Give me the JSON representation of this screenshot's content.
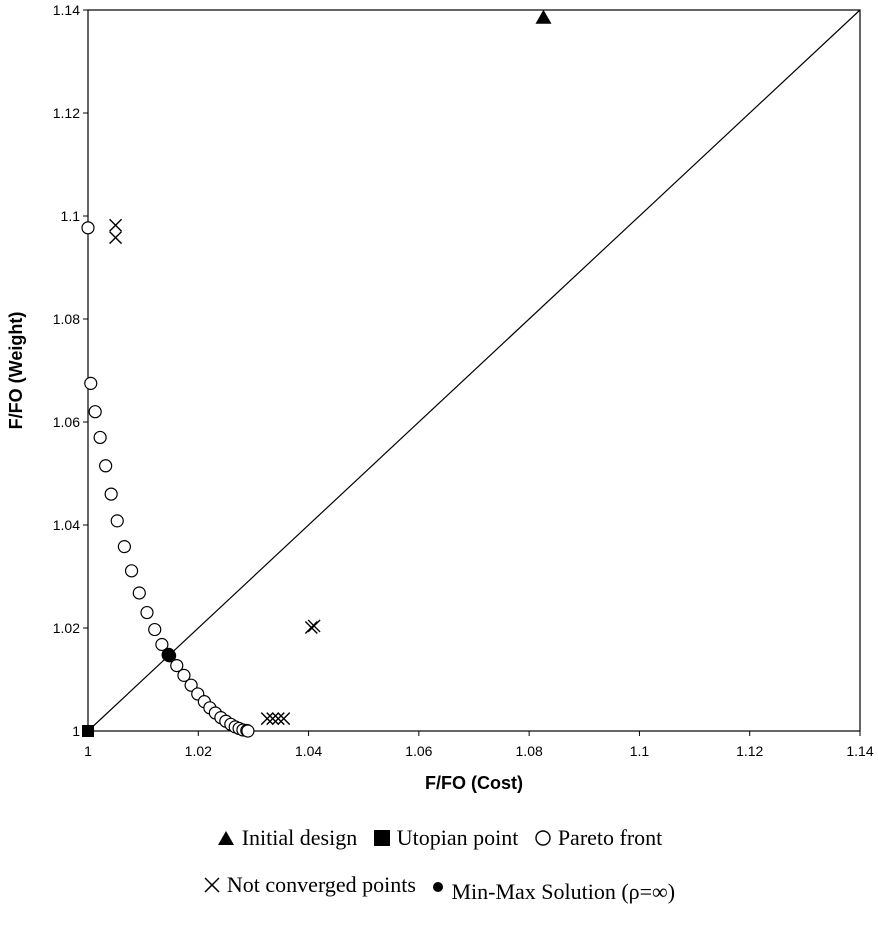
{
  "chart_data": {
    "type": "scatter",
    "xlabel": "F/FO (Cost)",
    "ylabel": "F/FO (Weight)",
    "xlim": [
      1,
      1.14
    ],
    "ylim": [
      1,
      1.14
    ],
    "x_ticks": [
      "1",
      "1.02",
      "1.04",
      "1.06",
      "1.08",
      "1.1",
      "1.12",
      "1.14"
    ],
    "y_ticks": [
      "1",
      "1.02",
      "1.04",
      "1.06",
      "1.08",
      "1.1",
      "1.12",
      "1.14"
    ],
    "grid": false,
    "diagonal_line": [
      [
        1,
        1
      ],
      [
        1.14,
        1.14
      ]
    ],
    "legend_position": "bottom",
    "series": [
      {
        "name": "Initial design",
        "marker": "triangle-filled",
        "points": [
          [
            1.0826,
            1.1385
          ]
        ]
      },
      {
        "name": "Utopian point",
        "marker": "square-filled",
        "points": [
          [
            1.0,
            1.0
          ]
        ]
      },
      {
        "name": "Pareto front",
        "marker": "circle-open",
        "points": [
          [
            1.0,
            1.0977
          ],
          [
            1.0005,
            1.0675
          ],
          [
            1.0013,
            1.062
          ],
          [
            1.0022,
            1.057
          ],
          [
            1.0032,
            1.0515
          ],
          [
            1.0042,
            1.046
          ],
          [
            1.0053,
            1.0408
          ],
          [
            1.0066,
            1.0358
          ],
          [
            1.0079,
            1.0311
          ],
          [
            1.0093,
            1.0268
          ],
          [
            1.0107,
            1.023
          ],
          [
            1.0121,
            1.0197
          ],
          [
            1.0134,
            1.0168
          ],
          [
            1.0148,
            1.0146
          ],
          [
            1.0161,
            1.0127
          ],
          [
            1.0174,
            1.0108
          ],
          [
            1.0187,
            1.0089
          ],
          [
            1.0199,
            1.0072
          ],
          [
            1.0211,
            1.0057
          ],
          [
            1.0221,
            1.0045
          ],
          [
            1.0231,
            1.0035
          ],
          [
            1.0241,
            1.0026
          ],
          [
            1.025,
            1.0019
          ],
          [
            1.0259,
            1.0013
          ],
          [
            1.0267,
            1.0008
          ],
          [
            1.0274,
            1.0005
          ],
          [
            1.0281,
            1.0002
          ],
          [
            1.0288,
            1.0001
          ],
          [
            1.029,
            1.0
          ]
        ]
      },
      {
        "name": "Not converged points",
        "marker": "x",
        "points": [
          [
            1.005,
            1.0982
          ],
          [
            1.005,
            1.0958
          ],
          [
            1.041,
            1.0204
          ],
          [
            1.0405,
            1.0201
          ],
          [
            1.0325,
            1.0024
          ],
          [
            1.0335,
            1.0024
          ],
          [
            1.0345,
            1.0024
          ],
          [
            1.0355,
            1.0024
          ]
        ]
      },
      {
        "name": "Min-Max Solution (ρ=∞)",
        "marker": "circle-filled",
        "points": [
          [
            1.0146,
            1.0148
          ]
        ]
      }
    ]
  }
}
